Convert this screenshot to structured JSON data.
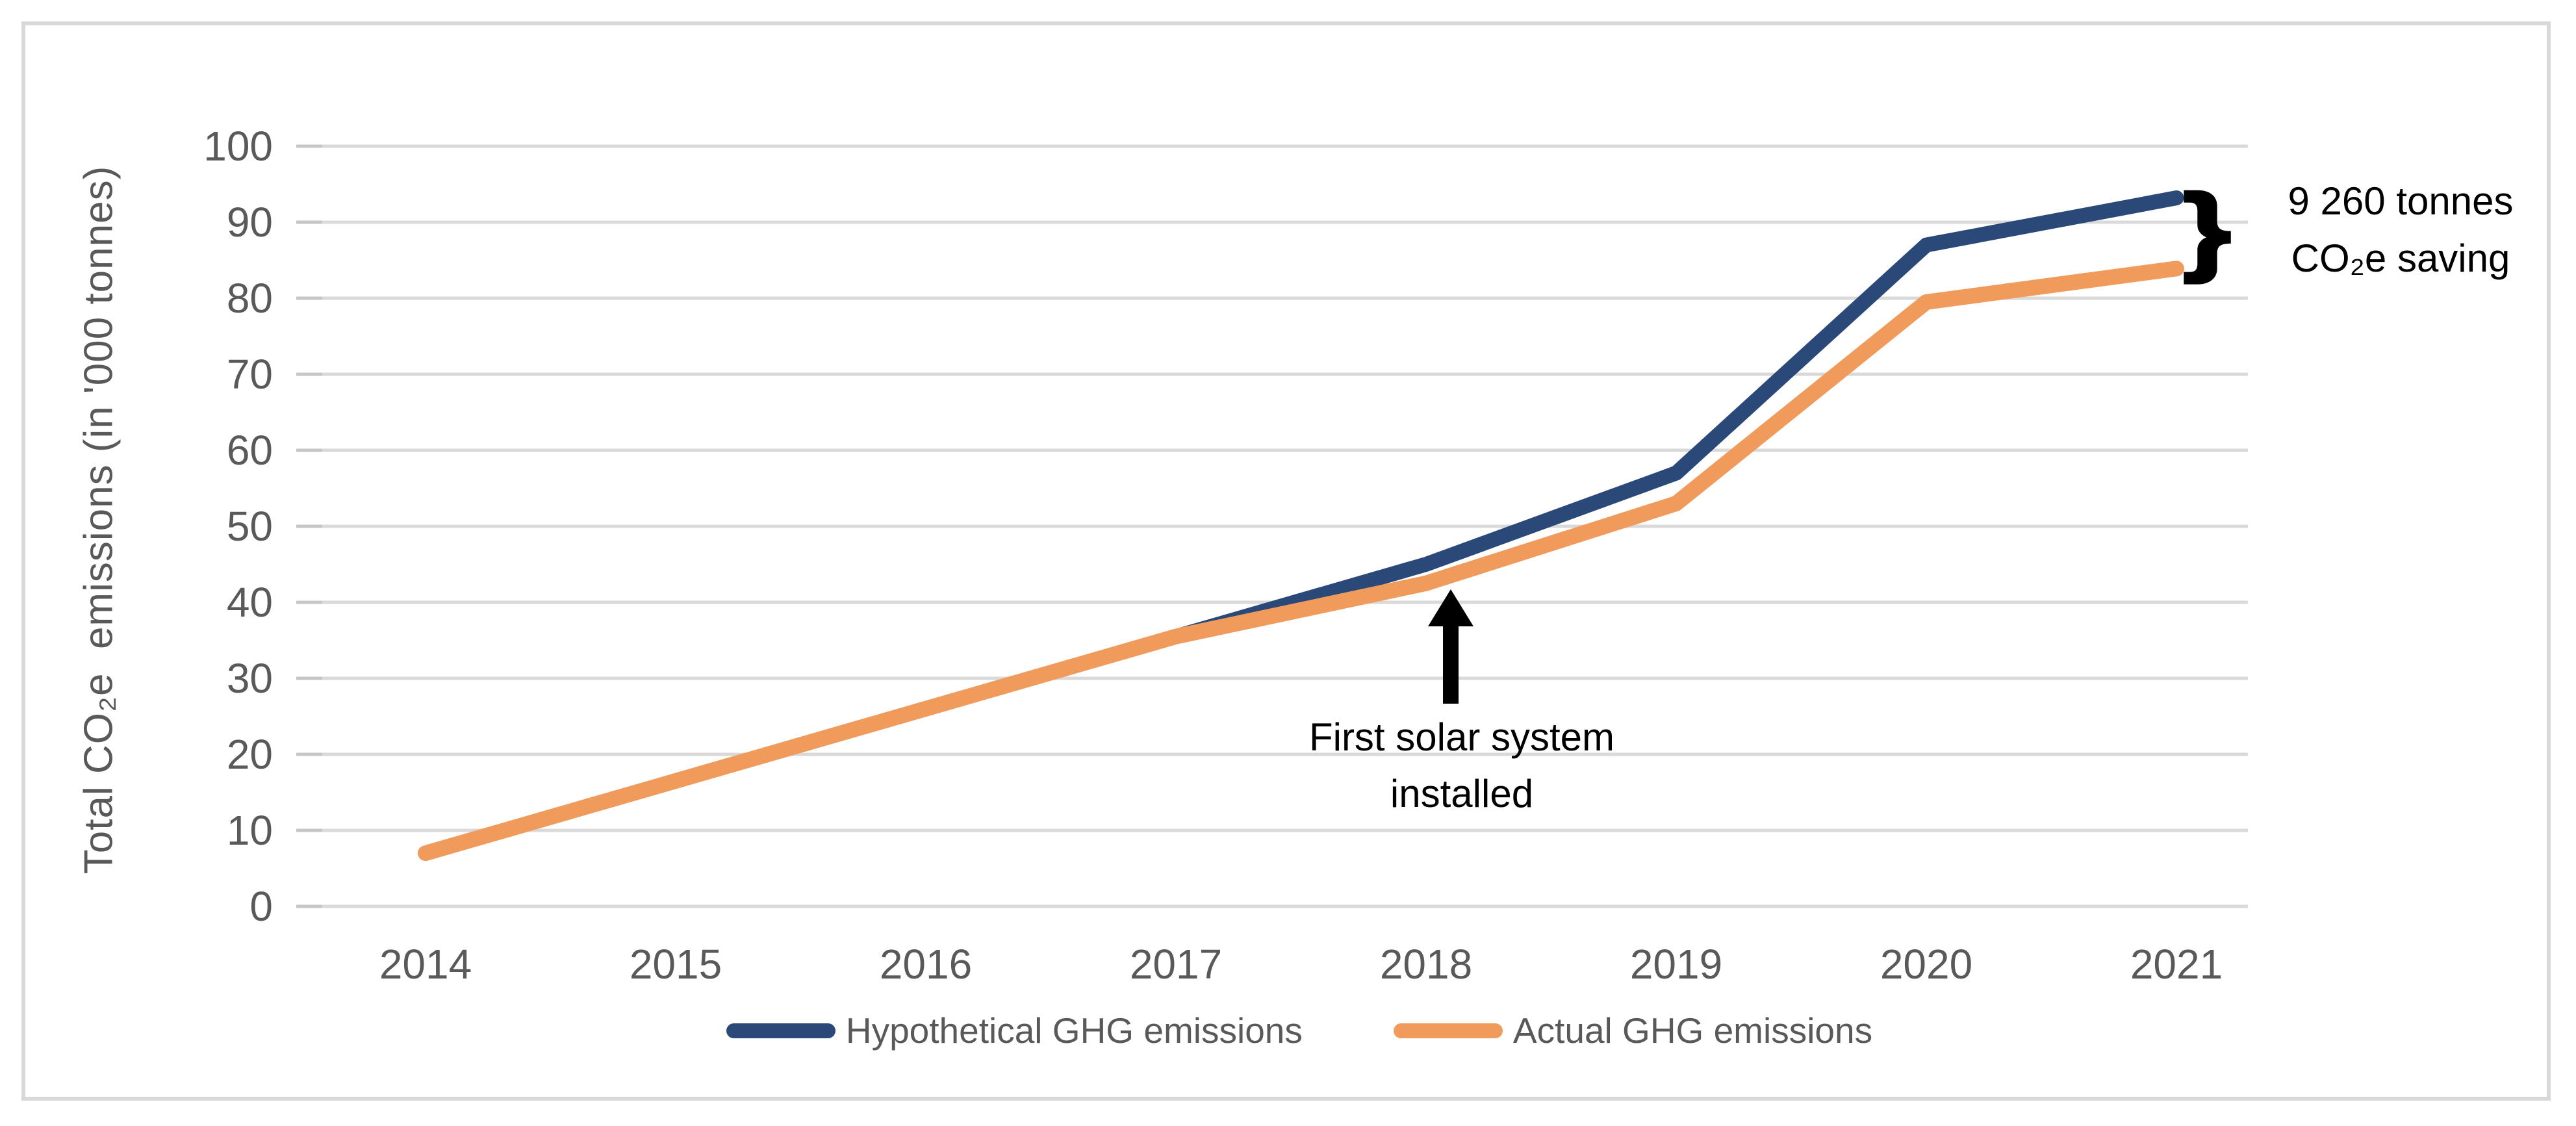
{
  "chart_data": {
    "type": "line",
    "categories": [
      "2014",
      "2015",
      "2016",
      "2017",
      "2018",
      "2019",
      "2020",
      "2021"
    ],
    "series": [
      {
        "name": "Hypothetical GHG emissions",
        "color": "#2A4878",
        "values": [
          7,
          16.5,
          26,
          35.5,
          45,
          57,
          87,
          93.2
        ]
      },
      {
        "name": "Actual GHG emissions",
        "color": "#F09B5C",
        "values": [
          7,
          16.5,
          26,
          35.5,
          42.5,
          53,
          79.5,
          83.9
        ]
      }
    ],
    "title": "",
    "xlabel": "",
    "ylabel": "Total CO₂e  emissions (in '000 tonnes)",
    "ylim": [
      0,
      100
    ],
    "yticks": [
      0,
      10,
      20,
      30,
      40,
      50,
      60,
      70,
      80,
      90,
      100
    ],
    "grid": true,
    "gridline_color": "#D9D9D9",
    "tick_color": "#C6C6C6",
    "axis_text_color": "#595959",
    "legend_position": "bottom",
    "annotations": [
      {
        "id": "solar-install",
        "lines": [
          "First solar system",
          "installed"
        ],
        "arrow": "up",
        "target_year": "2018"
      },
      {
        "id": "co2-saving",
        "lines": [
          "9 260 tonnes",
          "CO₂e saving"
        ],
        "brace": "}"
      }
    ]
  }
}
